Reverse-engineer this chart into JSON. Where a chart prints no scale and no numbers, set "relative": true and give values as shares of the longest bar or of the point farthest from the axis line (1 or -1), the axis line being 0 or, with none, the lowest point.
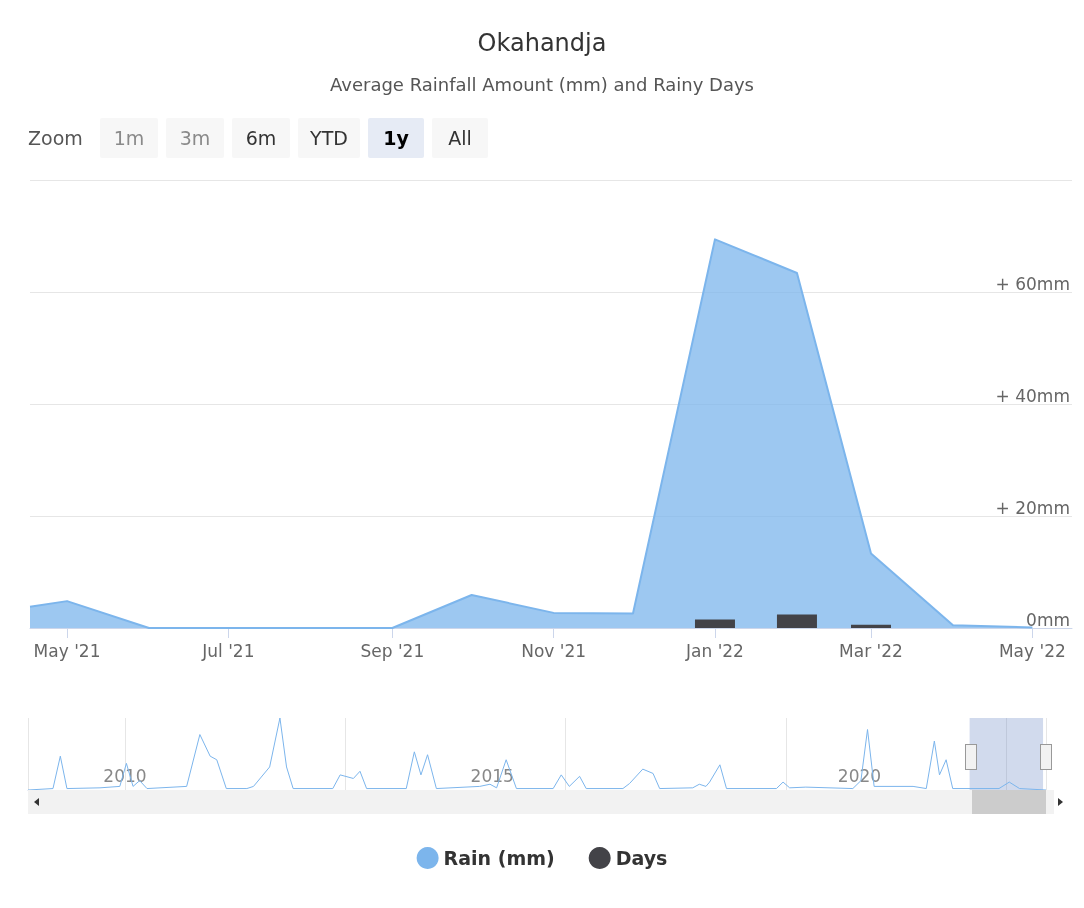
{
  "chart_data": [
    {
      "type": "area",
      "title": "Okahandja",
      "subtitle": "Average Rainfall Amount (mm) and Rainy Days",
      "annotations": [
        "Zoom",
        "1m",
        "3m",
        "6m",
        "YTD",
        "1y",
        "All"
      ],
      "x": [
        "2021-04-17",
        "2021-05-01",
        "2021-06-01",
        "2021-07-01",
        "2021-08-01",
        "2021-09-01",
        "2021-10-01",
        "2021-11-01",
        "2021-12-01",
        "2022-01-01",
        "2022-02-01",
        "2022-03-01",
        "2022-04-01",
        "2022-05-01"
      ],
      "series": [
        {
          "name": "Rain (mm)",
          "type": "area",
          "color": "#7cb5ec",
          "values": [
            3.8,
            4.8,
            0,
            0,
            0,
            0,
            5.9,
            2.7,
            2.6,
            69.4,
            63.4,
            13.3,
            0.5,
            0.1
          ]
        },
        {
          "name": "Days",
          "type": "bar",
          "color": "#434348",
          "x": [
            "2022-01-01",
            "2022-02-01",
            "2022-03-01"
          ],
          "values": [
            1.5,
            2.4,
            0.6
          ]
        }
      ],
      "xlim": [
        "2021-04-17",
        "2022-05-16"
      ],
      "xticks": [
        {
          "value": "2021-05-01",
          "label": "May '21"
        },
        {
          "value": "2021-07-01",
          "label": "Jul '21"
        },
        {
          "value": "2021-09-01",
          "label": "Sep '21"
        },
        {
          "value": "2021-11-01",
          "label": "Nov '21"
        },
        {
          "value": "2022-01-01",
          "label": "Jan '22"
        },
        {
          "value": "2022-03-01",
          "label": "Mar '22"
        },
        {
          "value": "2022-05-01",
          "label": "May '22"
        }
      ],
      "ylim": [
        0,
        80
      ],
      "yticks": [
        {
          "value": 0,
          "label": "0mm"
        },
        {
          "value": 20,
          "label": "+ 20mm"
        },
        {
          "value": 40,
          "label": "+ 40mm"
        },
        {
          "value": 60,
          "label": "+ 60mm"
        },
        {
          "value": 80,
          "label": null
        }
      ],
      "grid": "y",
      "legend": "bottom",
      "marker": "none"
    },
    {
      "type": "line",
      "relative": true,
      "x": [
        2008.68,
        2009.02,
        2009.12,
        2009.21,
        2009.66,
        2009.93,
        2010.02,
        2010.11,
        2010.2,
        2010.3,
        2010.84,
        2011.02,
        2011.16,
        2011.25,
        2011.38,
        2011.66,
        2011.75,
        2011.97,
        2012.11,
        2012.2,
        2012.29,
        2012.83,
        2012.93,
        2013.11,
        2013.2,
        2013.29,
        2013.83,
        2013.94,
        2014.03,
        2014.12,
        2014.24,
        2014.83,
        2014.97,
        2015.06,
        2015.19,
        2015.33,
        2015.83,
        2015.94,
        2016.05,
        2016.19,
        2016.28,
        2016.78,
        2016.87,
        2017.05,
        2017.19,
        2017.28,
        2017.73,
        2017.82,
        2017.91,
        2017.96,
        2018.1,
        2018.19,
        2018.87,
        2018.96,
        2019.05,
        2019.27,
        2019.91,
        2020.02,
        2020.11,
        2020.2,
        2020.73,
        2020.91,
        2021.02,
        2021.09,
        2021.18,
        2021.27,
        2021.9,
        2022.04,
        2022.18,
        2022.54
      ],
      "series": [
        {
          "color": "#7cb5ec",
          "values": [
            0,
            0.02,
            0.47,
            0.02,
            0.03,
            0.05,
            0.37,
            0.05,
            0.13,
            0.02,
            0.05,
            0.77,
            0.47,
            0.42,
            0.02,
            0.02,
            0.05,
            0.32,
            1,
            0.32,
            0.02,
            0.02,
            0.21,
            0.16,
            0.26,
            0.02,
            0.02,
            0.53,
            0.21,
            0.49,
            0.02,
            0.05,
            0.08,
            0.03,
            0.42,
            0.02,
            0.02,
            0.21,
            0.05,
            0.19,
            0.02,
            0.02,
            0.09,
            0.29,
            0.23,
            0.02,
            0.03,
            0.08,
            0.05,
            0.11,
            0.35,
            0.02,
            0.02,
            0.11,
            0.03,
            0.04,
            0.02,
            0.13,
            0.84,
            0.05,
            0.05,
            0.02,
            0.68,
            0.21,
            0.42,
            0.02,
            0.02,
            0.11,
            0.02,
            0
          ]
        }
      ],
      "xlim": [
        2008.68,
        2022.54
      ],
      "xticks": [
        2010,
        2015,
        2020
      ],
      "grid": "x",
      "marker": "none",
      "bands": [
        {
          "axis": "x",
          "from": 2021.5,
          "to": 2022.5,
          "color": "#6685c2"
        }
      ]
    }
  ]
}
